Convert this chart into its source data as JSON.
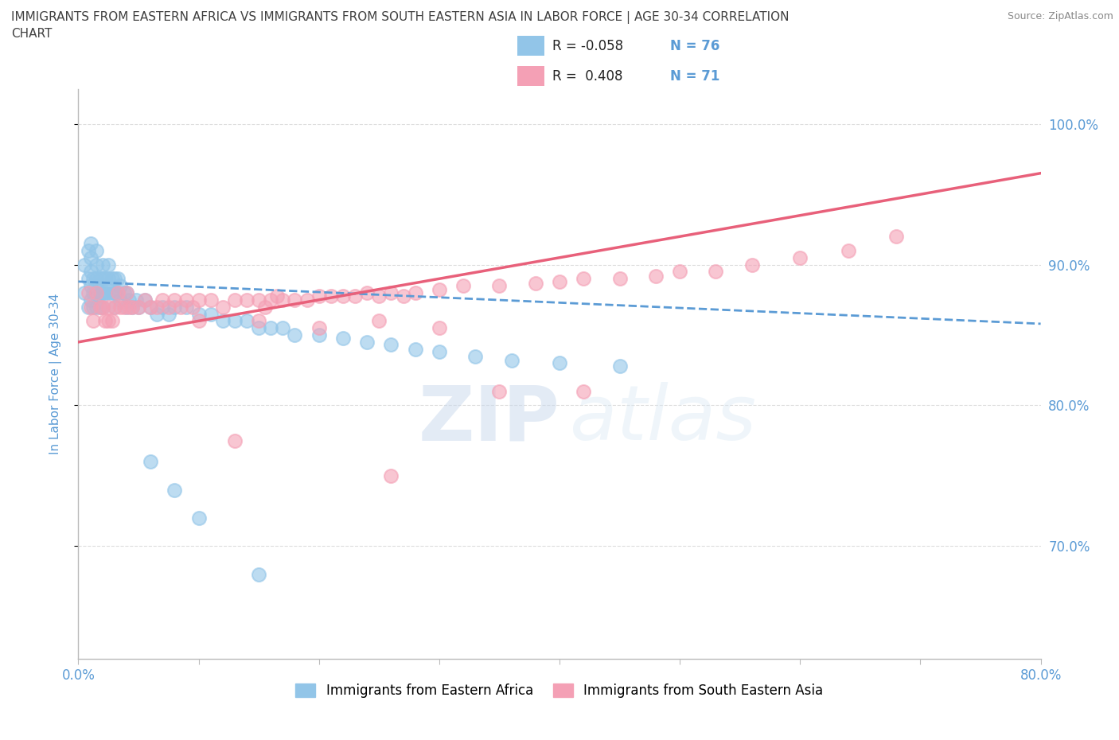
{
  "title_line1": "IMMIGRANTS FROM EASTERN AFRICA VS IMMIGRANTS FROM SOUTH EASTERN ASIA IN LABOR FORCE | AGE 30-34 CORRELATION",
  "title_line2": "CHART",
  "source_text": "Source: ZipAtlas.com",
  "ylabel": "In Labor Force | Age 30-34",
  "xlim": [
    0.0,
    0.8
  ],
  "ylim": [
    0.62,
    1.025
  ],
  "ytick_labels": [
    "70.0%",
    "80.0%",
    "90.0%",
    "100.0%"
  ],
  "ytick_values": [
    0.7,
    0.8,
    0.9,
    1.0
  ],
  "xtick_values": [
    0.0,
    0.1,
    0.2,
    0.3,
    0.4,
    0.5,
    0.6,
    0.7,
    0.8
  ],
  "watermark_zip": "ZIP",
  "watermark_atlas": "atlas",
  "blue_color": "#92C5E8",
  "pink_color": "#F4A0B5",
  "blue_line_color": "#5B9BD5",
  "pink_line_color": "#E8607A",
  "blue_R": -0.058,
  "blue_N": 76,
  "pink_R": 0.408,
  "pink_N": 71,
  "legend_label_blue": "Immigrants from Eastern Africa",
  "legend_label_pink": "Immigrants from South Eastern Asia",
  "blue_scatter_x": [
    0.005,
    0.005,
    0.008,
    0.008,
    0.008,
    0.01,
    0.01,
    0.01,
    0.01,
    0.01,
    0.012,
    0.012,
    0.012,
    0.015,
    0.015,
    0.015,
    0.015,
    0.015,
    0.018,
    0.018,
    0.018,
    0.02,
    0.02,
    0.02,
    0.02,
    0.022,
    0.022,
    0.025,
    0.025,
    0.025,
    0.028,
    0.028,
    0.03,
    0.03,
    0.03,
    0.033,
    0.033,
    0.035,
    0.035,
    0.038,
    0.04,
    0.04,
    0.042,
    0.045,
    0.048,
    0.05,
    0.055,
    0.06,
    0.065,
    0.07,
    0.075,
    0.08,
    0.09,
    0.1,
    0.11,
    0.12,
    0.13,
    0.14,
    0.15,
    0.16,
    0.17,
    0.18,
    0.2,
    0.22,
    0.24,
    0.26,
    0.28,
    0.3,
    0.33,
    0.36,
    0.4,
    0.45,
    0.06,
    0.08,
    0.1,
    0.15
  ],
  "blue_scatter_y": [
    0.88,
    0.9,
    0.87,
    0.89,
    0.91,
    0.875,
    0.885,
    0.895,
    0.905,
    0.915,
    0.87,
    0.88,
    0.89,
    0.87,
    0.88,
    0.89,
    0.9,
    0.91,
    0.87,
    0.88,
    0.89,
    0.87,
    0.88,
    0.89,
    0.9,
    0.88,
    0.89,
    0.88,
    0.89,
    0.9,
    0.88,
    0.89,
    0.87,
    0.88,
    0.89,
    0.88,
    0.89,
    0.875,
    0.885,
    0.88,
    0.87,
    0.88,
    0.875,
    0.87,
    0.875,
    0.87,
    0.875,
    0.87,
    0.865,
    0.87,
    0.865,
    0.87,
    0.87,
    0.865,
    0.865,
    0.86,
    0.86,
    0.86,
    0.855,
    0.855,
    0.855,
    0.85,
    0.85,
    0.848,
    0.845,
    0.843,
    0.84,
    0.838,
    0.835,
    0.832,
    0.83,
    0.828,
    0.76,
    0.74,
    0.72,
    0.68
  ],
  "pink_scatter_x": [
    0.008,
    0.01,
    0.012,
    0.015,
    0.018,
    0.02,
    0.022,
    0.025,
    0.028,
    0.03,
    0.033,
    0.035,
    0.038,
    0.04,
    0.042,
    0.045,
    0.05,
    0.055,
    0.06,
    0.065,
    0.07,
    0.075,
    0.08,
    0.085,
    0.09,
    0.095,
    0.1,
    0.11,
    0.12,
    0.13,
    0.14,
    0.15,
    0.155,
    0.16,
    0.165,
    0.17,
    0.18,
    0.19,
    0.2,
    0.21,
    0.22,
    0.23,
    0.24,
    0.25,
    0.26,
    0.27,
    0.28,
    0.3,
    0.32,
    0.35,
    0.38,
    0.4,
    0.42,
    0.45,
    0.48,
    0.5,
    0.53,
    0.56,
    0.6,
    0.64,
    0.68,
    0.025,
    0.13,
    0.26,
    0.35,
    0.42,
    0.1,
    0.15,
    0.2,
    0.25,
    0.3
  ],
  "pink_scatter_y": [
    0.88,
    0.87,
    0.86,
    0.88,
    0.87,
    0.87,
    0.86,
    0.87,
    0.86,
    0.87,
    0.88,
    0.87,
    0.87,
    0.88,
    0.87,
    0.87,
    0.87,
    0.875,
    0.87,
    0.87,
    0.875,
    0.87,
    0.875,
    0.87,
    0.875,
    0.87,
    0.875,
    0.875,
    0.87,
    0.875,
    0.875,
    0.875,
    0.87,
    0.875,
    0.878,
    0.875,
    0.875,
    0.875,
    0.878,
    0.878,
    0.878,
    0.878,
    0.88,
    0.878,
    0.88,
    0.878,
    0.88,
    0.882,
    0.885,
    0.885,
    0.887,
    0.888,
    0.89,
    0.89,
    0.892,
    0.895,
    0.895,
    0.9,
    0.905,
    0.91,
    0.92,
    0.86,
    0.775,
    0.75,
    0.81,
    0.81,
    0.86,
    0.86,
    0.855,
    0.86,
    0.855
  ],
  "background_color": "#FFFFFF",
  "grid_color": "#DDDDDD",
  "title_color": "#404040",
  "tick_label_color": "#5B9BD5"
}
